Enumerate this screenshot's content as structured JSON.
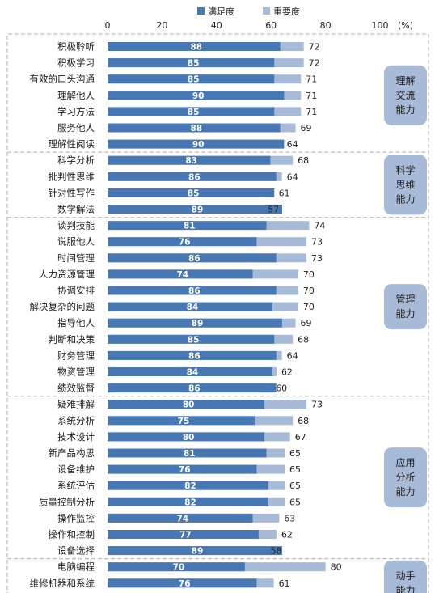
{
  "chart_data": {
    "type": "bar",
    "orientation": "horizontal",
    "unit": "(%)",
    "xlim": [
      0,
      100
    ],
    "xticks": [
      "0",
      "20",
      "40",
      "60",
      "80",
      "100"
    ],
    "legend": {
      "position": "top",
      "entries": [
        "满足度",
        "重要度"
      ]
    },
    "colors": {
      "satisfaction": "#4878b4",
      "importance": "#a7bbd8",
      "group_box": "#a7bbd8",
      "divider": "#bdbdbd"
    },
    "series": [
      {
        "name": "满足度",
        "values": [
          88,
          85,
          85,
          90,
          85,
          88,
          90,
          83,
          86,
          85,
          89,
          81,
          76,
          86,
          74,
          86,
          84,
          89,
          85,
          86,
          84,
          86,
          80,
          75,
          80,
          81,
          76,
          82,
          82,
          74,
          77,
          89,
          70,
          76,
          null
        ]
      },
      {
        "name": "重要度",
        "values": [
          72,
          72,
          71,
          71,
          71,
          69,
          64,
          68,
          64,
          61,
          57,
          74,
          73,
          73,
          70,
          70,
          70,
          69,
          68,
          64,
          62,
          60,
          73,
          68,
          67,
          65,
          65,
          65,
          65,
          63,
          62,
          58,
          80,
          61,
          null
        ]
      }
    ],
    "categories": [
      "积极聆听",
      "积极学习",
      "有效的口头沟通",
      "理解他人",
      "学习方法",
      "服务他人",
      "理解性阅读",
      "科学分析",
      "批判性思维",
      "针对性写作",
      "数学解法",
      "谈判技能",
      "说服他人",
      "时间管理",
      "人力资源管理",
      "协调安排",
      "解决复杂的问题",
      "指导他人",
      "判断和决策",
      "财务管理",
      "物资管理",
      "绩效监督",
      "疑难排解",
      "系统分析",
      "技术设计",
      "新产品构思",
      "设备维护",
      "系统评估",
      "质量控制分析",
      "操作监控",
      "操作和控制",
      "设备选择",
      "电脑编程",
      "维修机器和系统",
      ""
    ],
    "groups": [
      {
        "label_lines": [
          "理解",
          "交流",
          "能力"
        ],
        "count": 7
      },
      {
        "label_lines": [
          "科学",
          "思维",
          "能力"
        ],
        "count": 4
      },
      {
        "label_lines": [
          "管理",
          "能力"
        ],
        "count": 11
      },
      {
        "label_lines": [
          "应用",
          "分析",
          "能力"
        ],
        "count": 10
      },
      {
        "label_lines": [
          "动手",
          "能力"
        ],
        "count": 3
      }
    ]
  }
}
